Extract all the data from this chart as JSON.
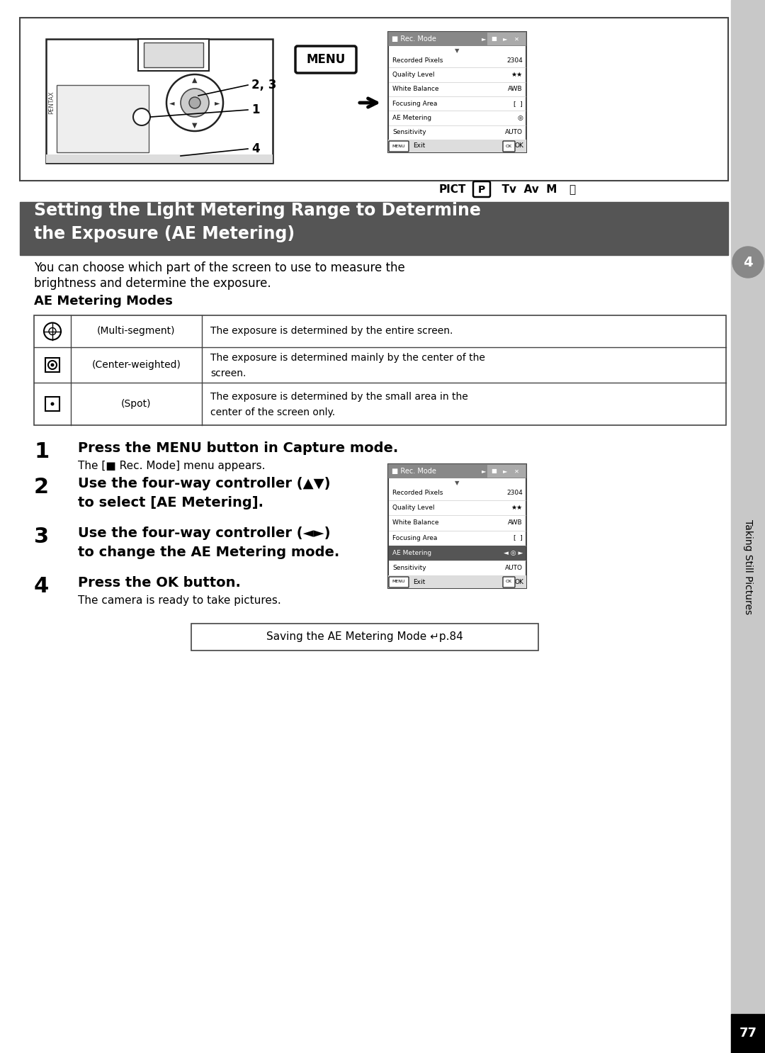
{
  "page_bg": "#ffffff",
  "right_tab_bg": "#c8c8c8",
  "header_bg": "#555555",
  "header_text_color": "#ffffff",
  "header_line1": "Setting the Light Metering Range to Determine",
  "header_line2": "the Exposure (AE Metering)",
  "intro_line1": "You can choose which part of the screen to use to measure the",
  "intro_line2": "brightness and determine the exposure.",
  "ae_modes_label": "AE Metering Modes",
  "table_rows": [
    {
      "icon": "multi",
      "mode": "(Multi-segment)",
      "desc_line1": "The exposure is determined by the entire screen.",
      "desc_line2": ""
    },
    {
      "icon": "center",
      "mode": "(Center-weighted)",
      "desc_line1": "The exposure is determined mainly by the center of the",
      "desc_line2": "screen."
    },
    {
      "icon": "spot",
      "mode": "(Spot)",
      "desc_line1": "The exposure is determined by the small area in the",
      "desc_line2": "center of the screen only."
    }
  ],
  "step1_bold": "Press the MENU button in Capture mode.",
  "step1_normal": "The [■ Rec. Mode] menu appears.",
  "step2_bold1": "Use the four-way controller (▲▼)",
  "step2_bold2": "to select [AE Metering].",
  "step3_bold1": "Use the four-way controller (◄►)",
  "step3_bold2": "to change the AE Metering mode.",
  "step4_bold": "Press the OK button.",
  "step4_normal": "The camera is ready to take pictures.",
  "save_note": "Saving the AE Metering Mode ↵p.84",
  "right_tab_number": "4",
  "right_tab_label": "Taking Still Pictures",
  "bottom_tab_text": "77",
  "menu1_rows": [
    [
      "Recorded Pixels",
      "2304"
    ],
    [
      "Quality Level",
      "★★"
    ],
    [
      "White Balance",
      "AWB"
    ],
    [
      "Focusing Area",
      "[  ]"
    ],
    [
      "AE Metering",
      "◎"
    ],
    [
      "Sensitivity",
      "AUTO"
    ]
  ],
  "menu2_rows": [
    [
      "Recorded Pixels",
      "2304"
    ],
    [
      "Quality Level",
      "★★"
    ],
    [
      "White Balance",
      "AWB"
    ],
    [
      "Focusing Area",
      "[  ]"
    ],
    [
      "AE Metering",
      "◄ ◎ ►"
    ],
    [
      "Sensitivity",
      "AUTO"
    ]
  ],
  "menu2_highlight": 4
}
